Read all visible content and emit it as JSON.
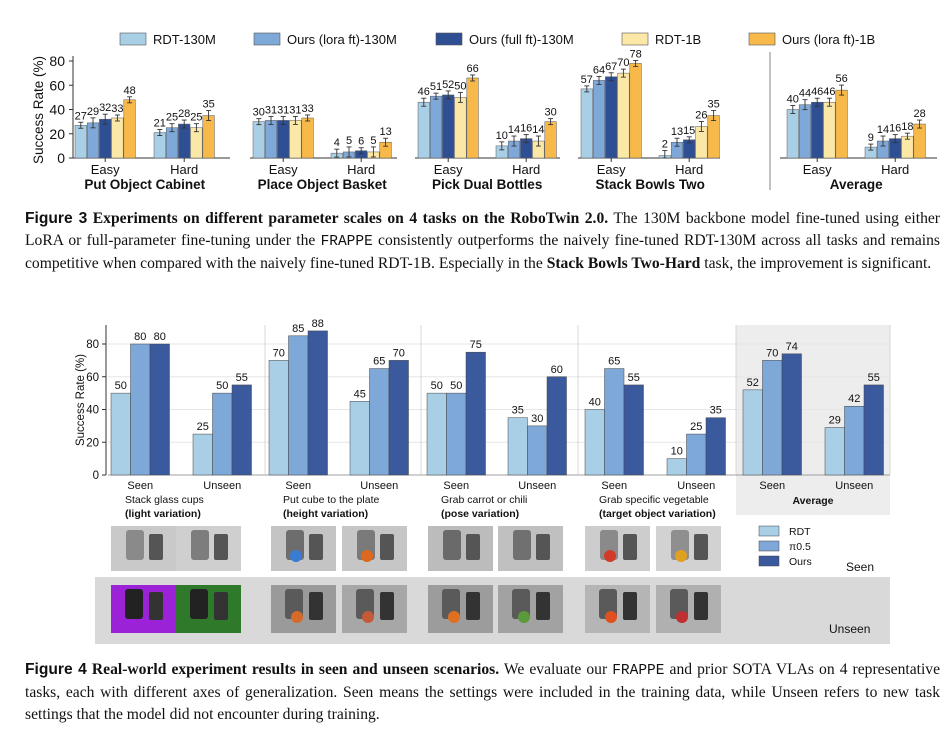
{
  "figure3": {
    "legend": [
      {
        "name": "RDT-130M",
        "color": "#a8cfe6"
      },
      {
        "name": "Ours (lora ft)-130M",
        "color": "#7ea8d8"
      },
      {
        "name": "Ours (full ft)-130M",
        "color": "#2f4f95"
      },
      {
        "name": "RDT-1B",
        "color": "#fbe7a6"
      },
      {
        "name": "Ours (lora ft)-1B",
        "color": "#f6b94a"
      }
    ],
    "caption": {
      "label": "Figure 3",
      "title": "Experiments on different parameter scales on 4 tasks on the RoboTwin 2.0.",
      "body1": " The 130M backbone model fine-tuned using either LoRA or full-parameter fine-tuning under the ",
      "method": "FRAPPE",
      "body2": " consistently outperforms the naively fine-tuned RDT-130M across all tasks and remains competitive when compared with the naively fine-tuned RDT-1B. Especially in the ",
      "highlight": "Stack Bowls Two-Hard",
      "body3": " task, the improvement is significant."
    }
  },
  "chart_data": [
    {
      "type": "bar",
      "ylabel": "Success Rate (%)",
      "ylim": [
        0,
        80
      ],
      "yticks": [
        0,
        20,
        40,
        60,
        80
      ],
      "grid": false,
      "legend": "top",
      "series_names": [
        "RDT-130M",
        "Ours (lora ft)-130M",
        "Ours (full ft)-130M",
        "RDT-1B",
        "Ours (lora ft)-1B"
      ],
      "panels": [
        {
          "title": "Put Object Cabinet",
          "categories": [
            "Easy",
            "Hard"
          ],
          "values": [
            [
              27,
              29,
              32,
              33,
              48
            ],
            [
              21,
              25,
              28,
              25,
              35
            ]
          ]
        },
        {
          "title": "Place Object Basket",
          "categories": [
            "Easy",
            "Hard"
          ],
          "values": [
            [
              30,
              31,
              31,
              31,
              33
            ],
            [
              4,
              5,
              6,
              5,
              13
            ]
          ]
        },
        {
          "title": "Pick Dual Bottles",
          "categories": [
            "Easy",
            "Hard"
          ],
          "values": [
            [
              46,
              51,
              52,
              50,
              66
            ],
            [
              10,
              14,
              16,
              14,
              30
            ]
          ]
        },
        {
          "title": "Stack Bowls Two",
          "categories": [
            "Easy",
            "Hard"
          ],
          "values": [
            [
              57,
              64,
              67,
              70,
              78
            ],
            [
              2,
              13,
              15,
              26,
              35
            ]
          ]
        },
        {
          "title": "Average",
          "categories": [
            "Easy",
            "Hard"
          ],
          "values": [
            [
              40,
              44,
              46,
              46,
              56
            ],
            [
              9,
              14,
              16,
              18,
              28
            ]
          ]
        }
      ]
    },
    {
      "type": "bar",
      "ylabel": "Success Rate (%)",
      "ylim": [
        0,
        90
      ],
      "yticks": [
        0,
        20,
        40,
        60,
        80
      ],
      "grid": true,
      "legend": "right",
      "series_names": [
        "RDT",
        "π0.5",
        "Ours"
      ],
      "panels": [
        {
          "title": "Stack glass cups",
          "subtitle": "(light variation)",
          "categories": [
            "Seen",
            "Unseen"
          ],
          "values": [
            [
              50,
              80,
              80
            ],
            [
              25,
              50,
              55
            ]
          ]
        },
        {
          "title": "Put cube to the plate",
          "subtitle": "(height variation)",
          "categories": [
            "Seen",
            "Unseen"
          ],
          "values": [
            [
              70,
              85,
              88
            ],
            [
              45,
              65,
              70
            ]
          ]
        },
        {
          "title": "Grab carrot or chili",
          "subtitle": "(pose variation)",
          "categories": [
            "Seen",
            "Unseen"
          ],
          "values": [
            [
              50,
              50,
              75
            ],
            [
              35,
              30,
              60
            ]
          ]
        },
        {
          "title": "Grab specific vegetable",
          "subtitle": "(target object variation)",
          "categories": [
            "Seen",
            "Unseen"
          ],
          "values": [
            [
              40,
              65,
              55
            ],
            [
              10,
              25,
              35
            ]
          ]
        },
        {
          "title": "",
          "subtitle": "Average",
          "categories": [
            "Seen",
            "Unseen"
          ],
          "values": [
            [
              52,
              70,
              74
            ],
            [
              29,
              42,
              55
            ]
          ]
        }
      ]
    }
  ],
  "figure4": {
    "legend": [
      {
        "name": "RDT",
        "color": "#a8cfe6"
      },
      {
        "name": "π0.5",
        "color": "#7ea8d8"
      },
      {
        "name": "Ours",
        "color": "#3b5a9e"
      }
    ],
    "row_labels": {
      "seen": "Seen",
      "unseen": "Unseen"
    },
    "caption": {
      "label": "Figure 4",
      "title": "Real-world experiment results in seen and unseen scenarios.",
      "body1": " We evaluate our ",
      "method": "FRAPPE",
      "body2": " and prior SOTA VLAs on 4 representative tasks, each with different axes of generalization. Seen means the settings were included in the training data, while Unseen refers to new task settings that the model did not encounter during training."
    }
  }
}
